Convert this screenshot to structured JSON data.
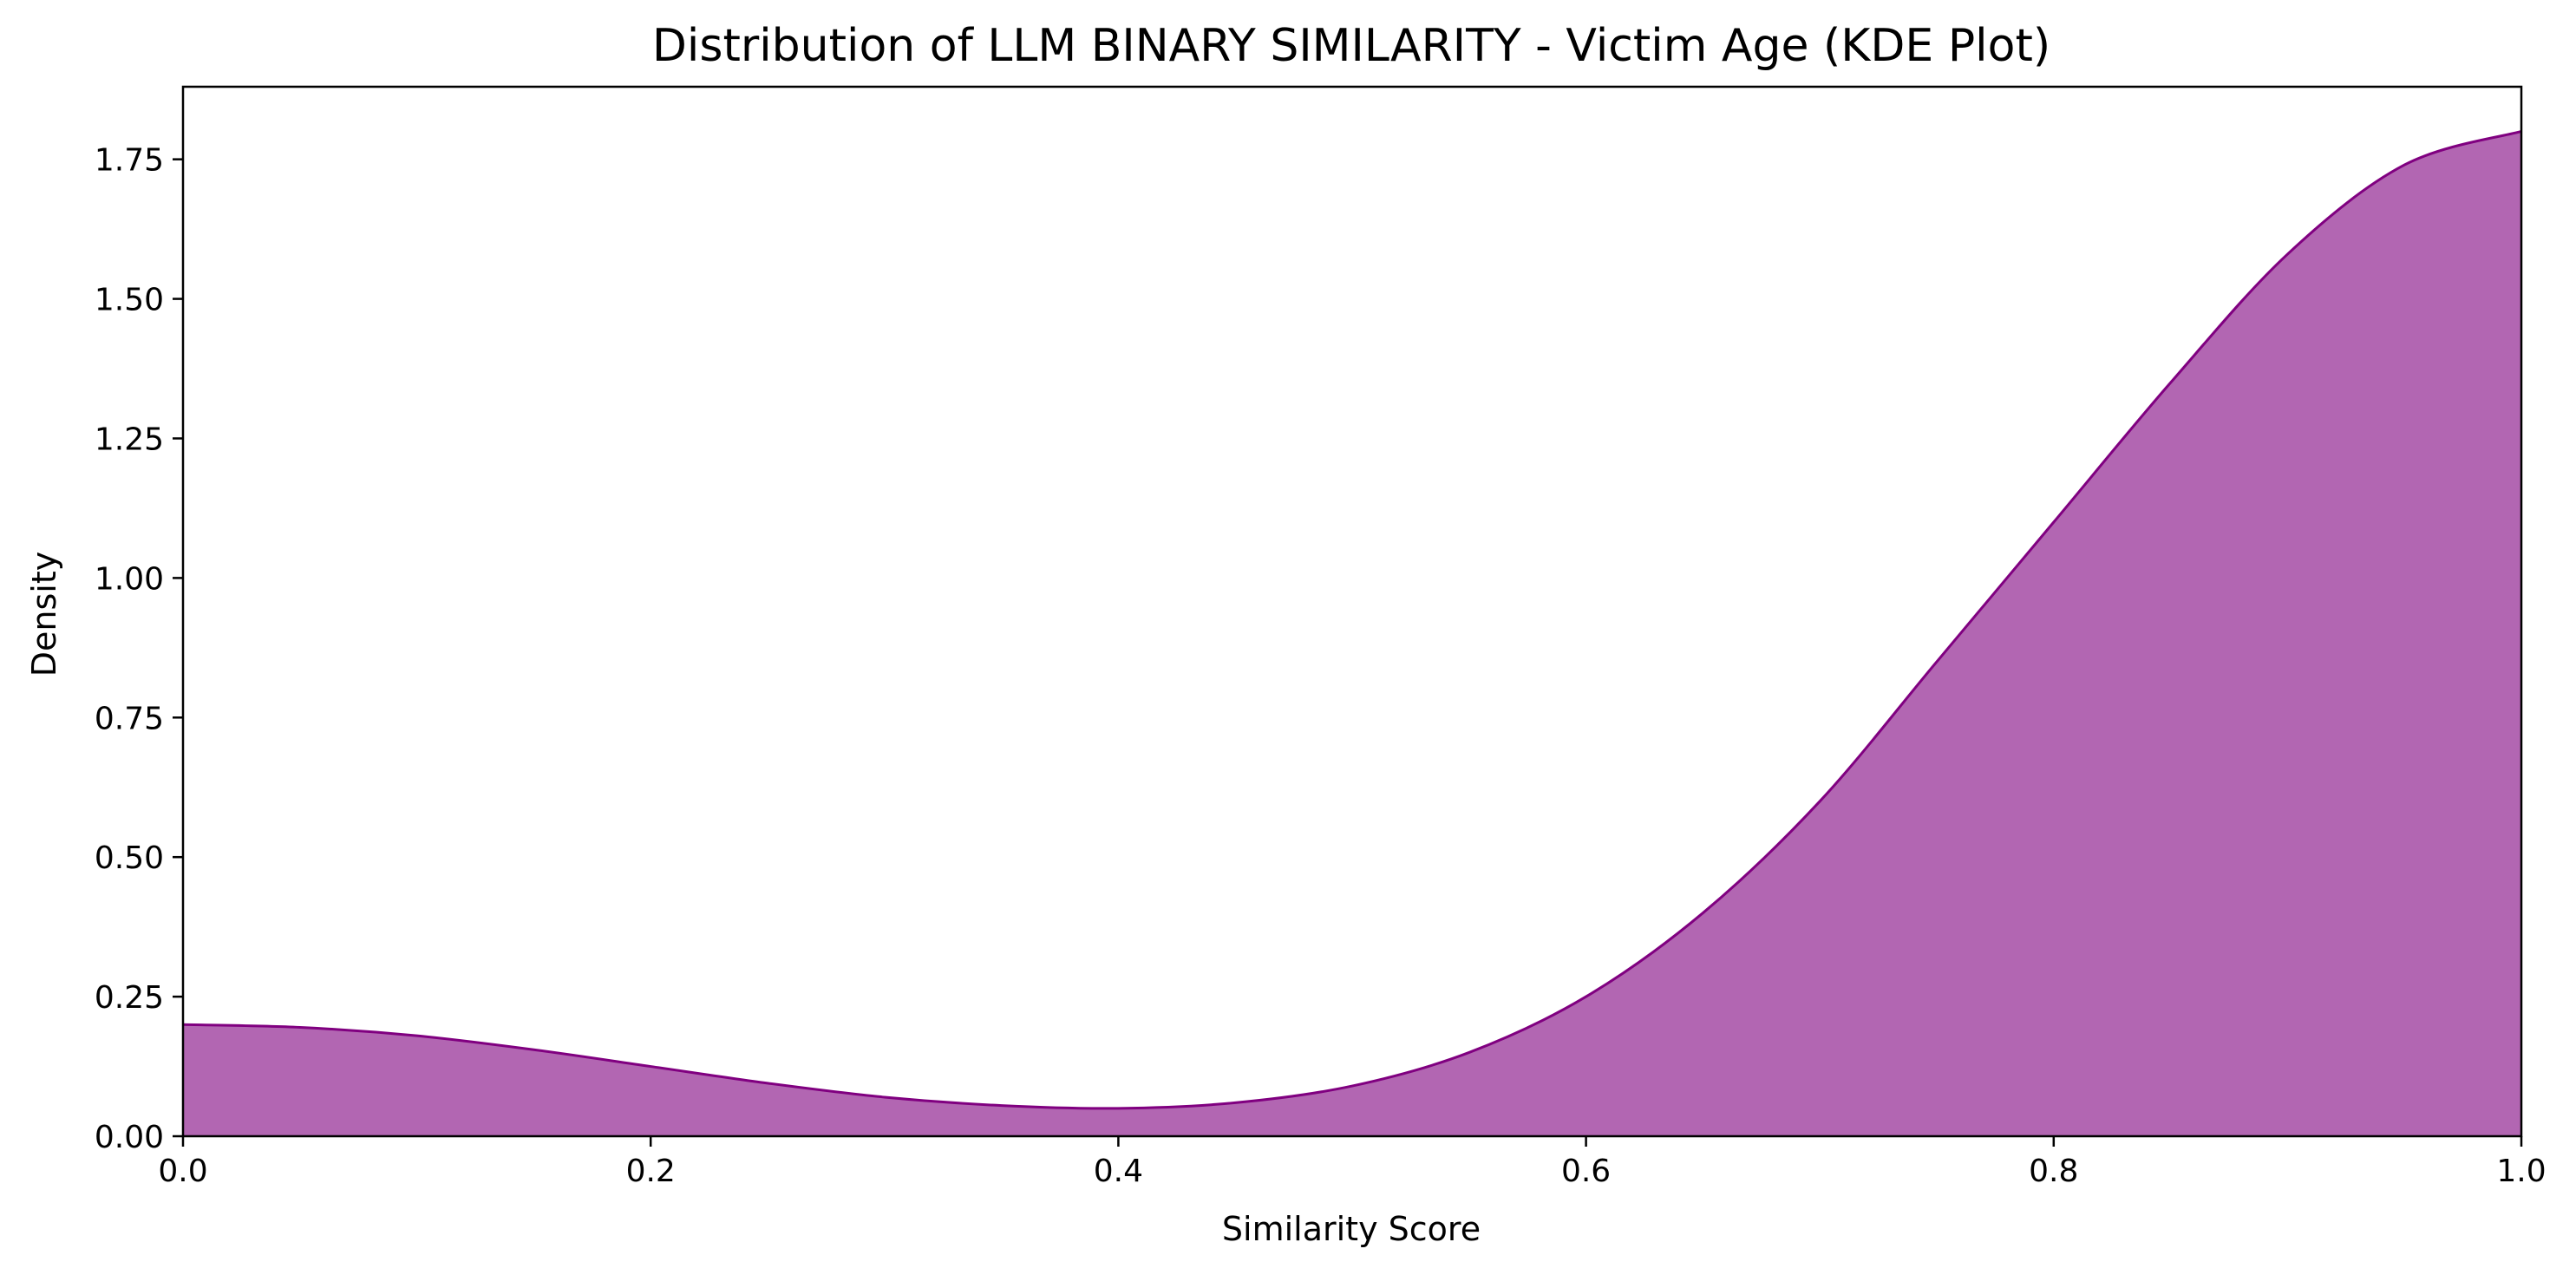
{
  "chart_data": {
    "type": "area",
    "subtype": "kde",
    "title": "Distribution of LLM BINARY SIMILARITY - Victim Age (KDE Plot)",
    "xlabel": "Similarity Score",
    "ylabel": "Density",
    "xlim": [
      0.0,
      1.0
    ],
    "ylim": [
      0.0,
      1.88
    ],
    "xticks": [
      0.0,
      0.2,
      0.4,
      0.6,
      0.8,
      1.0
    ],
    "xtick_labels": [
      "0.0",
      "0.2",
      "0.4",
      "0.6",
      "0.8",
      "1.0"
    ],
    "yticks": [
      0.0,
      0.25,
      0.5,
      0.75,
      1.0,
      1.25,
      1.5,
      1.75
    ],
    "ytick_labels": [
      "0.00",
      "0.25",
      "0.50",
      "0.75",
      "1.00",
      "1.25",
      "1.50",
      "1.75"
    ],
    "grid": false,
    "legend": "none",
    "fill_color": "#b266b2",
    "line_color": "#800080",
    "series": [
      {
        "x": [
          0.0,
          0.05,
          0.1,
          0.15,
          0.2,
          0.25,
          0.3,
          0.35,
          0.4,
          0.45,
          0.5,
          0.55,
          0.6,
          0.65,
          0.7,
          0.75,
          0.8,
          0.85,
          0.9,
          0.95,
          1.0
        ],
        "y": [
          0.2,
          0.195,
          0.18,
          0.155,
          0.125,
          0.095,
          0.07,
          0.055,
          0.05,
          0.06,
          0.09,
          0.15,
          0.25,
          0.4,
          0.6,
          0.85,
          1.1,
          1.35,
          1.58,
          1.74,
          1.8
        ]
      }
    ]
  }
}
